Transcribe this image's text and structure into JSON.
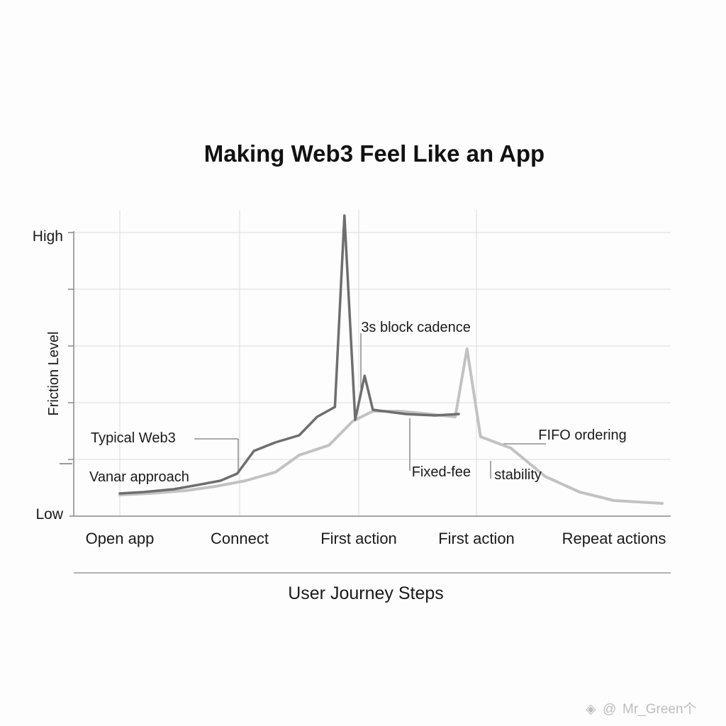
{
  "chart_data": {
    "type": "line",
    "title": "Making Web3 Feel Like an App",
    "xlabel": "User Journey Steps",
    "ylabel": "Friction Level",
    "y_tick_labels": [
      "High",
      "Low"
    ],
    "categories": [
      "Open app",
      "Connect",
      "First action",
      "First action",
      "Repeat actions"
    ],
    "x_range": [
      0,
      4
    ],
    "y_range": [
      0,
      100
    ],
    "grid": true,
    "series": [
      {
        "name": "Typical Web3",
        "color": "#6e6e6e",
        "x": [
          0,
          0.2,
          0.45,
          0.65,
          0.84,
          0.98,
          1.12,
          1.3,
          1.5,
          1.65,
          1.8,
          1.88,
          1.97,
          2.05,
          2.12,
          2.4,
          2.65,
          2.85
        ],
        "y": [
          8,
          8.5,
          9.5,
          11,
          12.5,
          15,
          23,
          26,
          28.5,
          35,
          38.5,
          106,
          34,
          49.5,
          37.5,
          36,
          35.5,
          36
        ]
      },
      {
        "name": "Vanar approach",
        "color": "#c2c2c2",
        "x": [
          0,
          0.25,
          0.55,
          0.8,
          1.05,
          1.3,
          1.5,
          1.75,
          1.95,
          2.12,
          2.35,
          2.6,
          2.82,
          2.92,
          3.03,
          3.25,
          3.5,
          3.75,
          4.0,
          4.35
        ],
        "y": [
          7.5,
          8,
          9,
          10.5,
          12.5,
          15.5,
          21.5,
          25,
          33.5,
          37,
          37,
          36,
          35,
          59,
          28,
          24,
          14,
          8.5,
          5.5,
          4.5
        ]
      }
    ],
    "annotations": [
      {
        "text": "3s block cadence",
        "x": 2.02,
        "y": 65
      },
      {
        "text": "Fixed-fee",
        "x": 2.45,
        "y": 14
      },
      {
        "text": "stability",
        "x": 3.13,
        "y": 13
      },
      {
        "text": "FIFO ordering",
        "x": 3.45,
        "y": 27
      }
    ]
  },
  "watermark": {
    "symbol": "@",
    "text": "Mr_Green个"
  }
}
